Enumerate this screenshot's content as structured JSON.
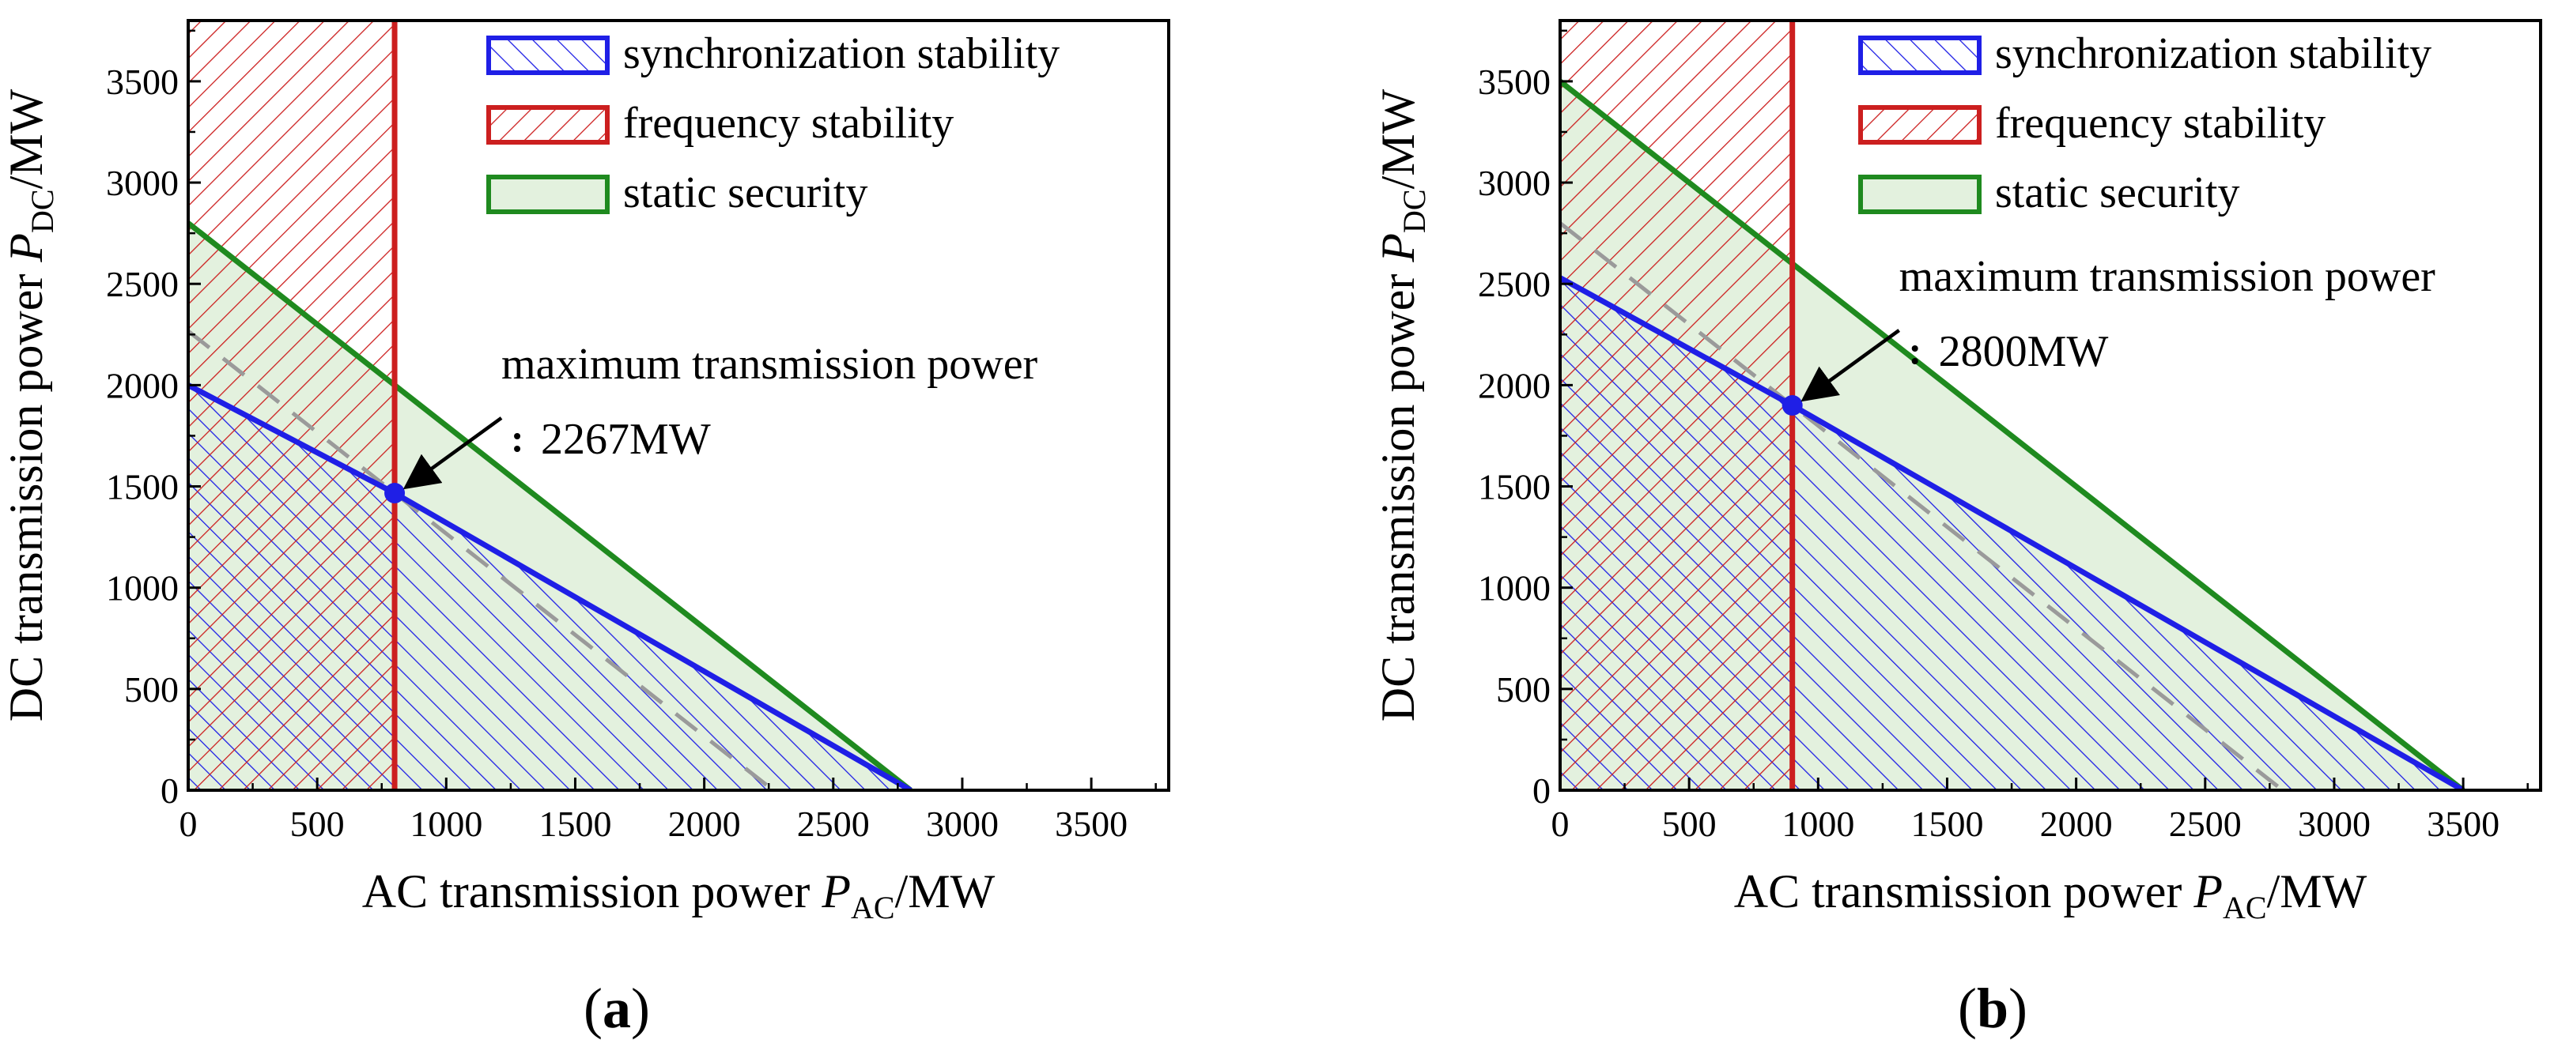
{
  "colors": {
    "sync": "#1f1fe6",
    "freq": "#cc1f1f",
    "static": "#1f8a1f",
    "static_fill": "#e3f1de",
    "dashed": "#9a9a9a",
    "axis": "#000000"
  },
  "chart_data": [
    {
      "type": "area",
      "panel_label": "a",
      "xlabel": "AC transmission power",
      "xlabel_symbol": "P",
      "xlabel_subscript": "AC",
      "xlabel_unit": "/MW",
      "ylabel": "DC transmission power",
      "ylabel_symbol": "P",
      "ylabel_subscript": "DC",
      "ylabel_unit": "/MW",
      "xlim": [
        0,
        3800
      ],
      "ylim": [
        0,
        3800
      ],
      "xticks": [
        0,
        500,
        1000,
        1500,
        2000,
        2500,
        3000,
        3500
      ],
      "yticks": [
        0,
        500,
        1000,
        1500,
        2000,
        2500,
        3000,
        3500
      ],
      "legend": [
        {
          "key": "sync",
          "label": "synchronization stability"
        },
        {
          "key": "freq",
          "label": "frequency stability"
        },
        {
          "key": "static",
          "label": "static security"
        }
      ],
      "sync_boundary": {
        "x": [
          0,
          800,
          2800
        ],
        "y": [
          2000,
          1467,
          0
        ]
      },
      "freq_limit_x": 800,
      "static_boundary": {
        "x": [
          0,
          2800
        ],
        "y": [
          2800,
          0
        ]
      },
      "dashed_line": {
        "x": [
          0,
          2267
        ],
        "y": [
          2267,
          0
        ]
      },
      "max_point": {
        "x": 800,
        "y": 1467
      },
      "annotation": {
        "line1": "maximum transmission power",
        "line2": "2267MW"
      }
    },
    {
      "type": "area",
      "panel_label": "b",
      "xlabel": "AC transmission power",
      "xlabel_symbol": "P",
      "xlabel_subscript": "AC",
      "xlabel_unit": "/MW",
      "ylabel": "DC transmission power",
      "ylabel_symbol": "P",
      "ylabel_subscript": "DC",
      "ylabel_unit": "/MW",
      "xlim": [
        0,
        3800
      ],
      "ylim": [
        0,
        3800
      ],
      "xticks": [
        0,
        500,
        1000,
        1500,
        2000,
        2500,
        3000,
        3500
      ],
      "yticks": [
        0,
        500,
        1000,
        1500,
        2000,
        2500,
        3000,
        3500
      ],
      "legend": [
        {
          "key": "sync",
          "label": "synchronization stability"
        },
        {
          "key": "freq",
          "label": "frequency stability"
        },
        {
          "key": "static",
          "label": "static security"
        }
      ],
      "sync_boundary": {
        "x": [
          0,
          900,
          3500
        ],
        "y": [
          2530,
          1900,
          0
        ]
      },
      "freq_limit_x": 900,
      "static_boundary": {
        "x": [
          0,
          3500
        ],
        "y": [
          3500,
          0
        ]
      },
      "dashed_line": {
        "x": [
          0,
          2800
        ],
        "y": [
          2800,
          0
        ]
      },
      "max_point": {
        "x": 900,
        "y": 1900
      },
      "annotation": {
        "line1": "maximum transmission power",
        "line2": "2800MW"
      }
    }
  ]
}
